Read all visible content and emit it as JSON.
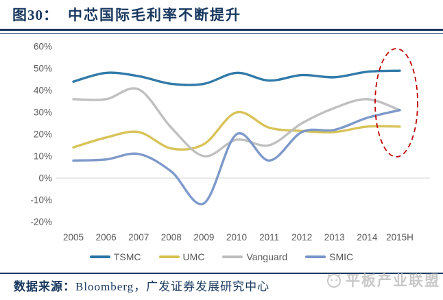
{
  "figure": {
    "label": "图30：",
    "title": "中芯国际毛利率不断提升"
  },
  "footer": {
    "source_label": "数据来源：",
    "source_text": "Bloomberg，广发证券发展研究中心"
  },
  "watermark": {
    "icon": "cat-face-icon",
    "text": "平板产业联盟"
  },
  "colors": {
    "title_text": "#17375E",
    "axis_text": "#595959",
    "gridline": "#D9D9D9",
    "annotation": "#C00000",
    "TSMC": "#2673A4",
    "UMC": "#D6C050",
    "Vanguard": "#BDBDBD",
    "SMIC": "#7793C7"
  },
  "chart_data": {
    "type": "line",
    "title": "中芯国际毛利率不断提升 (图30)",
    "x": [
      "2005",
      "2006",
      "2007",
      "2008",
      "2009",
      "2010",
      "2011",
      "2012",
      "2013",
      "2014",
      "2015H"
    ],
    "series": [
      {
        "name": "TSMC",
        "values": [
          44,
          48,
          46.5,
          43,
          43,
          48,
          44.5,
          47,
          46,
          48.5,
          49
        ]
      },
      {
        "name": "UMC",
        "values": [
          14,
          18.5,
          21,
          13.5,
          15.5,
          30,
          23,
          21.5,
          21,
          23.5,
          23.5
        ]
      },
      {
        "name": "Vanguard",
        "values": [
          36,
          36,
          40.5,
          23,
          10,
          17.5,
          15,
          25,
          32,
          36,
          31
        ]
      },
      {
        "name": "SMIC",
        "values": [
          8,
          8.5,
          11,
          3,
          -11.5,
          20,
          8,
          21,
          22,
          27.5,
          31
        ]
      }
    ],
    "ylim": [
      -20,
      60
    ],
    "yticks": [
      "60%",
      "50%",
      "40%",
      "30%",
      "20%",
      "10%",
      "0%",
      "-10%",
      "-20%"
    ],
    "ytick_values": [
      60,
      50,
      40,
      30,
      20,
      10,
      0,
      -10,
      -20
    ],
    "grid": "zero-line-only",
    "legend_position": "bottom",
    "line_style": "smooth",
    "annotation": {
      "shape": "dashed-ellipse",
      "at_x": "2015H",
      "note": "highlights 2015H values"
    }
  }
}
